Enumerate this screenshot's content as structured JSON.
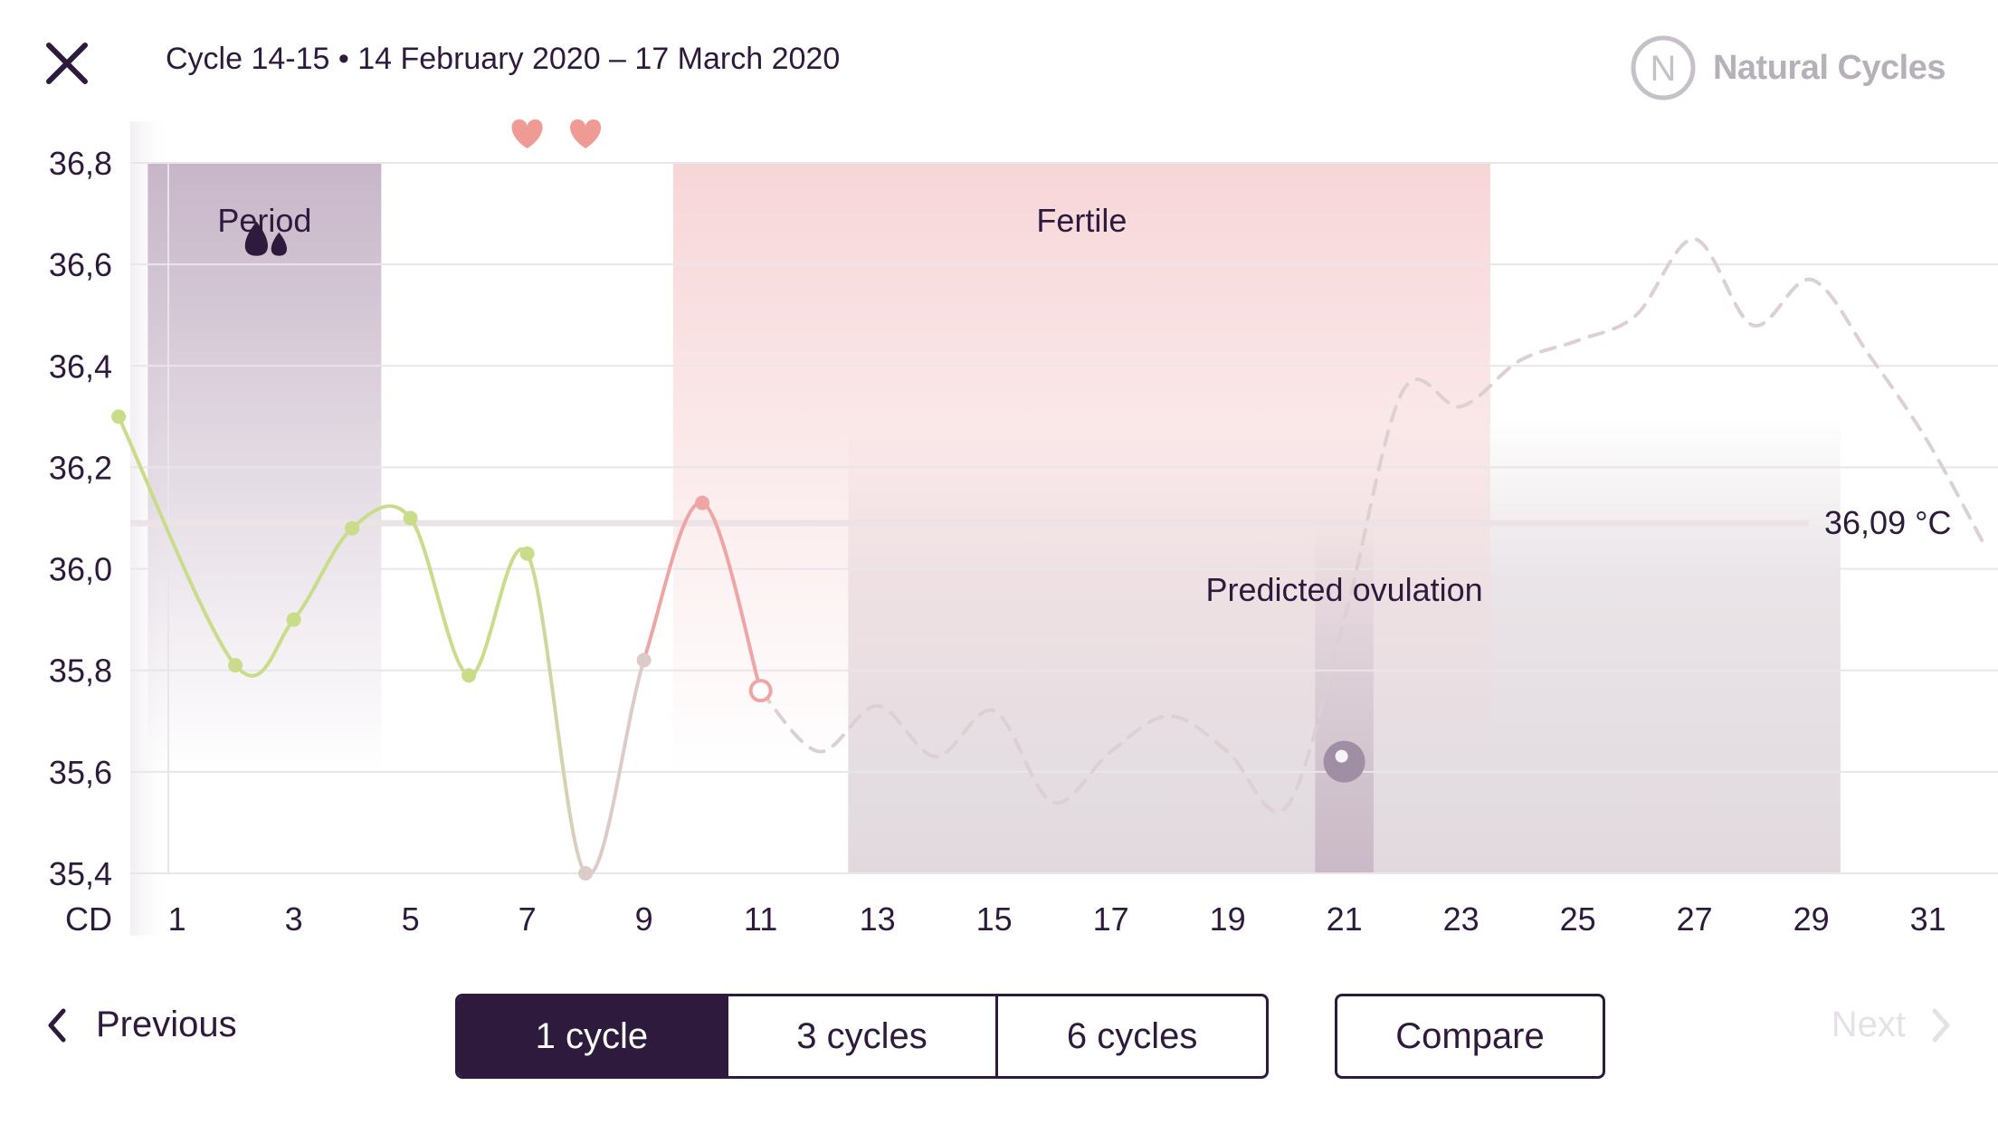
{
  "header": {
    "title": "Cycle 14-15 • 14 February 2020 – 17 March 2020",
    "brand": "Natural Cycles",
    "brand_logo_letter": "N",
    "close_icon": "close-icon"
  },
  "colors": {
    "primary": "#2e1a3d",
    "period": "#c7b6c8",
    "fertile": "#f7d6d8",
    "green_line": "#c9dc8a",
    "pink_line": "#f0a5a5",
    "neutral_line": "#dccbc8",
    "dashed_line": "#ddd0d3",
    "heart": "#f09a95"
  },
  "chart_data": {
    "type": "line",
    "ylim": [
      35.4,
      36.8
    ],
    "yticks": [
      "36,8",
      "36,6",
      "36,4",
      "36,2",
      "36,0",
      "35,8",
      "35,6",
      "35,4"
    ],
    "ytick_values": [
      36.8,
      36.6,
      36.4,
      36.2,
      36.0,
      35.8,
      35.6,
      35.4
    ],
    "x_axis_label": "CD",
    "xticks": [
      "1",
      "3",
      "5",
      "7",
      "9",
      "11",
      "13",
      "15",
      "17",
      "19",
      "21",
      "23",
      "25",
      "27",
      "29",
      "31"
    ],
    "xtick_values": [
      1,
      3,
      5,
      7,
      9,
      11,
      13,
      15,
      17,
      19,
      21,
      23,
      25,
      27,
      29,
      31
    ],
    "xlim": [
      0.2,
      32.2
    ],
    "coverline": {
      "value": 36.09,
      "label": "36,09 °C"
    },
    "bands": {
      "period": {
        "from": 0.5,
        "to": 4.5,
        "label": "Period"
      },
      "fertile": {
        "from": 9.5,
        "to": 23.5,
        "label": "Fertile"
      },
      "luteal_shade": {
        "from": 12.5,
        "to": 29.5
      },
      "ovulation": {
        "from": 20.5,
        "to": 21.5,
        "label": "Predicted ovulation",
        "marker_day": 21,
        "marker_value": 35.62
      }
    },
    "hearts_days": [
      7,
      8
    ],
    "series": [
      {
        "style": "measured",
        "days": [
          0,
          2,
          3,
          4,
          5,
          6,
          7,
          8,
          9,
          10,
          11
        ],
        "values": [
          36.3,
          35.81,
          35.9,
          36.08,
          36.1,
          35.79,
          36.03,
          35.4,
          35.82,
          36.13,
          35.76
        ],
        "point_colors": [
          "green",
          "green",
          "green",
          "green",
          "green",
          "green",
          "green",
          "neutral",
          "neutral",
          "pink",
          "pink-open"
        ]
      },
      {
        "style": "predicted",
        "days": [
          11,
          12,
          13,
          14,
          15,
          16,
          17,
          18,
          19,
          20,
          21,
          22,
          23,
          24,
          25,
          26,
          27,
          28,
          29,
          30,
          31,
          32
        ],
        "values": [
          35.76,
          35.64,
          35.73,
          35.63,
          35.72,
          35.54,
          35.64,
          35.71,
          35.64,
          35.53,
          35.9,
          36.35,
          36.32,
          36.41,
          36.45,
          36.5,
          36.65,
          36.48,
          36.57,
          36.42,
          36.25,
          36.04
        ]
      }
    ]
  },
  "footer": {
    "previous_label": "Previous",
    "next_label": "Next",
    "segments": [
      {
        "label": "1 cycle",
        "active": true
      },
      {
        "label": "3 cycles",
        "active": false
      },
      {
        "label": "6 cycles",
        "active": false
      }
    ],
    "compare_label": "Compare"
  }
}
